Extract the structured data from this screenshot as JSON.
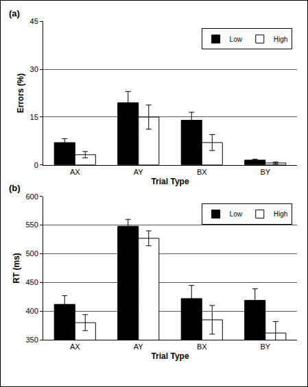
{
  "chart_data": [
    {
      "type": "bar",
      "title": "(a)",
      "x_label": "Trial Type",
      "y_label": "Errors (%)",
      "categories": [
        "AX",
        "AY",
        "BX",
        "BY"
      ],
      "series": [
        {
          "name": "Low",
          "color": "#000000",
          "values": [
            7,
            19.5,
            14,
            1.5
          ],
          "errors": [
            1.2,
            3.5,
            2.5,
            0.3
          ]
        },
        {
          "name": "High",
          "color": "#ffffff",
          "values": [
            3.2,
            15,
            7,
            0.6
          ],
          "errors": [
            1,
            3.8,
            2.5,
            0.3
          ]
        }
      ],
      "ylim": [
        0,
        45
      ],
      "yticks": [
        0,
        15,
        30,
        45
      ],
      "grid": true,
      "legend": "top right"
    },
    {
      "type": "bar",
      "title": "(b)",
      "x_label": "Trial Type",
      "y_label": "RT (ms)",
      "categories": [
        "AX",
        "AY",
        "BX",
        "BY"
      ],
      "series": [
        {
          "name": "Low",
          "color": "#000000",
          "values": [
            412,
            548,
            422,
            419
          ],
          "errors": [
            15,
            12,
            23,
            20
          ]
        },
        {
          "name": "High",
          "color": "#ffffff",
          "values": [
            380,
            527,
            385,
            362
          ],
          "errors": [
            14,
            13,
            25,
            20
          ]
        }
      ],
      "ylim": [
        350,
        600
      ],
      "yticks": [
        350,
        400,
        450,
        500,
        550,
        600
      ],
      "grid": true,
      "legend": "top right"
    }
  ]
}
